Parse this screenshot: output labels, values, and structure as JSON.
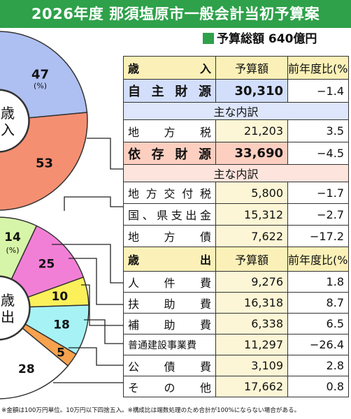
{
  "header": {
    "title": "2026年度 那須塩原市一般会計当初予算案"
  },
  "total": {
    "label": "予算総額 640億円"
  },
  "chart_data": [
    {
      "type": "pie",
      "title": "歳入",
      "categories": [
        "自主財源",
        "依存財源"
      ],
      "values": [
        47,
        53
      ],
      "unit_label": "(%)",
      "colors": [
        "#aebff2",
        "#f58f72"
      ]
    },
    {
      "type": "pie",
      "title": "歳出",
      "categories": [
        "人件費",
        "扶助費",
        "補助費",
        "普通建設事業費",
        "公債費",
        "その他"
      ],
      "values": [
        14,
        25,
        10,
        18,
        5,
        28
      ],
      "unit_label": "(%)",
      "colors": [
        "#d6f5a8",
        "#f27fd6",
        "#fbf05a",
        "#a6f2f5",
        "#f7a24e",
        "#ffffff"
      ]
    }
  ],
  "revenue": {
    "header": {
      "label": "歳入",
      "col1": "予算額",
      "col2": "前年度比(%)"
    },
    "self": {
      "label": "自主財源",
      "value": "30,310",
      "change": "−1.4"
    },
    "self_note": "主な内訳",
    "self_items": [
      {
        "label": "地方税",
        "value": "21,203",
        "change": "3.5"
      }
    ],
    "dep": {
      "label": "依存財源",
      "value": "33,690",
      "change": "−4.5"
    },
    "dep_note": "主な内訳",
    "dep_items": [
      {
        "label": "地方交付税",
        "value": "5,800",
        "change": "−1.7"
      },
      {
        "label": "国、県支出金",
        "value": "15,312",
        "change": "−2.7"
      },
      {
        "label": "地方債",
        "value": "7,622",
        "change": "−17.2"
      }
    ]
  },
  "expense": {
    "header": {
      "label": "歳出",
      "col1": "予算額",
      "col2": "前年度比(%)"
    },
    "items": [
      {
        "label": "人件費",
        "value": "9,276",
        "change": "1.8"
      },
      {
        "label": "扶助費",
        "value": "16,318",
        "change": "8.7"
      },
      {
        "label": "補助費",
        "value": "6,338",
        "change": "6.5"
      },
      {
        "label": "普通建設事業費",
        "value": "11,297",
        "change": "−26.4"
      },
      {
        "label": "公債費",
        "value": "3,109",
        "change": "2.8"
      },
      {
        "label": "その他",
        "value": "17,662",
        "change": "0.8"
      }
    ]
  },
  "footer": {
    "note": "※金額は100万円単位。10万円以下四捨五入。※構成比は端数処理のため合計が100%にならない場合がある。"
  },
  "colors": {
    "header_green": "#2ea14a",
    "table_yellow": "#fbf1b8",
    "self_blue": "#d2defa",
    "dep_pink": "#fccfc0"
  }
}
